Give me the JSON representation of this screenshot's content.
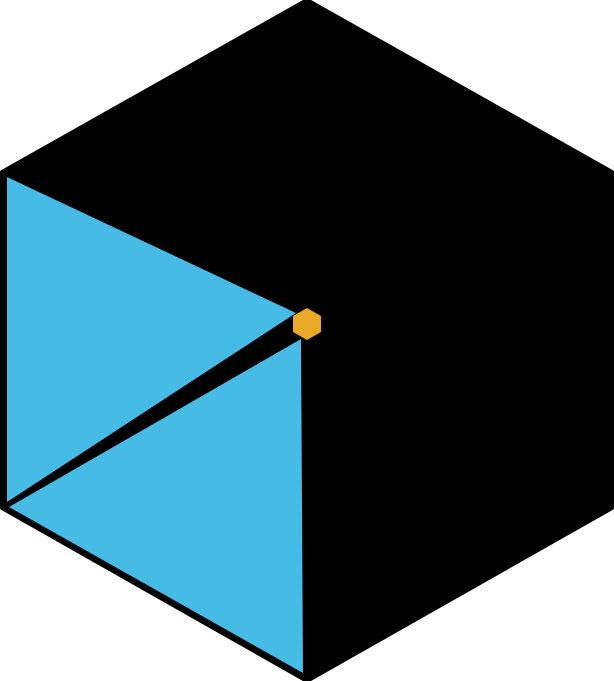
{
  "logo": {
    "colors": {
      "background": "#ffffff",
      "outline": "#000000",
      "dark_face": "#000000",
      "blue_face": "#46bbe6",
      "center_node": "#eaaa28"
    }
  }
}
